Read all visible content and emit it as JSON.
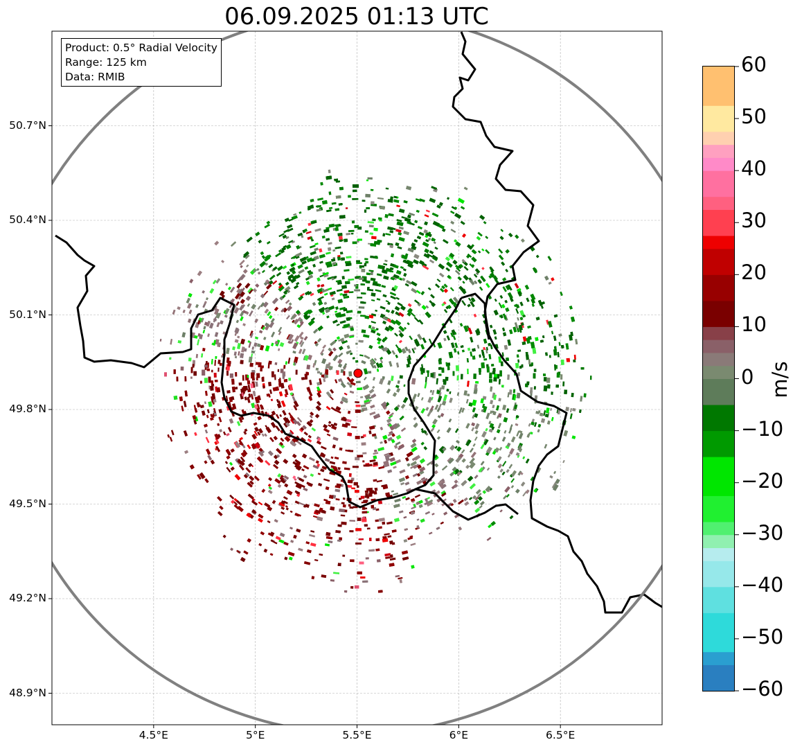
{
  "title": "06.09.2025 01:13 UTC",
  "infobox": {
    "product": "Product: 0.5° Radial Velocity",
    "range": "Range: 125 km",
    "source": "Data: RMIB"
  },
  "map": {
    "lon_range": [
      4.0,
      7.0
    ],
    "lat_range": [
      48.8,
      51.0
    ],
    "lat_ticks": [
      {
        "value": 50.7,
        "label": "50.7°N"
      },
      {
        "value": 50.4,
        "label": "50.4°N"
      },
      {
        "value": 50.1,
        "label": "50.1°N"
      },
      {
        "value": 49.8,
        "label": "49.8°N"
      },
      {
        "value": 49.5,
        "label": "49.5°N"
      },
      {
        "value": 49.2,
        "label": "49.2°N"
      },
      {
        "value": 48.9,
        "label": "48.9°N"
      }
    ],
    "lon_ticks": [
      {
        "value": 4.5,
        "label": "4.5°E"
      },
      {
        "value": 5.0,
        "label": "5°E"
      },
      {
        "value": 5.5,
        "label": "5.5°E"
      },
      {
        "value": 6.0,
        "label": "6°E"
      },
      {
        "value": 6.5,
        "label": "6.5°E"
      }
    ],
    "radar_site": {
      "lon": 5.505,
      "lat": 49.915
    },
    "range_ring_color": "#808080",
    "radar_marker_color": "#ff0000",
    "grid": true
  },
  "colorbar": {
    "unit": "m/s",
    "min": -60,
    "max": 60,
    "ticks": [
      {
        "value": 60,
        "label": "60"
      },
      {
        "value": 50,
        "label": "50"
      },
      {
        "value": 40,
        "label": "40"
      },
      {
        "value": 30,
        "label": "30"
      },
      {
        "value": 20,
        "label": "20"
      },
      {
        "value": 10,
        "label": "10"
      },
      {
        "value": 0,
        "label": "0"
      },
      {
        "value": -10,
        "label": "−10"
      },
      {
        "value": -20,
        "label": "−20"
      },
      {
        "value": -30,
        "label": "−30"
      },
      {
        "value": -40,
        "label": "−40"
      },
      {
        "value": -50,
        "label": "−50"
      },
      {
        "value": -60,
        "label": "−60"
      }
    ],
    "colors": {
      "inbound_strong": "#2a7fc0",
      "inbound_cyan": "#2edada",
      "inbound_pale": "#b6ecee",
      "inbound_green": "#00e600",
      "inbound_dark_green": "#006400",
      "zero_gray": "#7a8a70",
      "outbound_mauve": "#8a6068",
      "outbound_dark_red": "#7a0000",
      "outbound_red": "#ee0000",
      "outbound_pink": "#ff8ac8",
      "outbound_yellow": "#ffe9a0",
      "outbound_orange": "#ff9955"
    }
  }
}
